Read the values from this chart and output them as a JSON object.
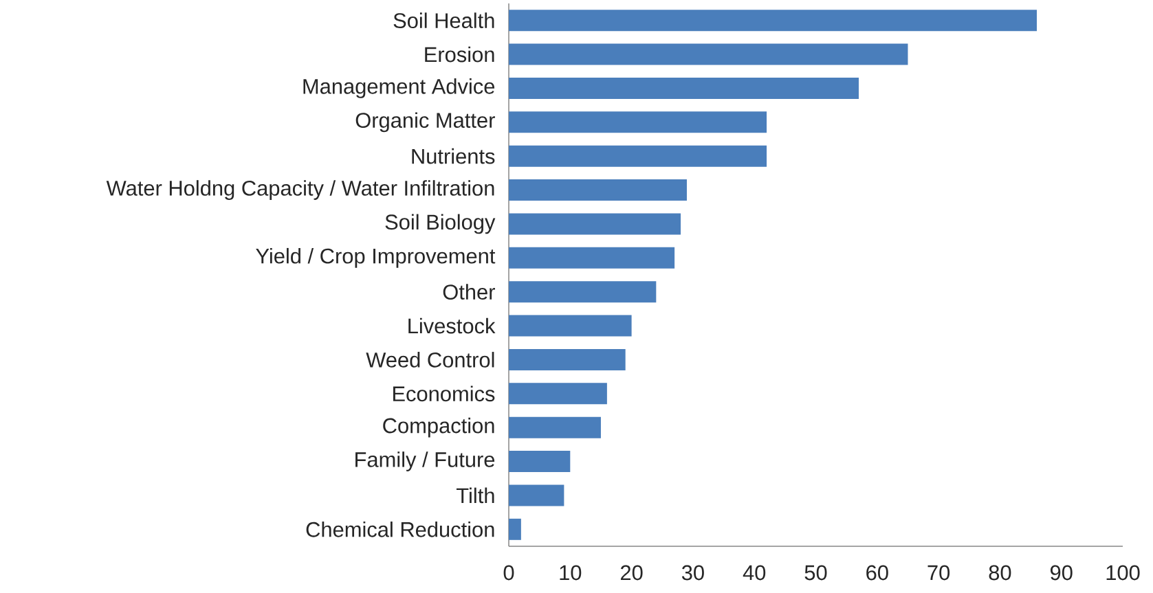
{
  "chart_data": {
    "type": "bar",
    "orientation": "horizontal",
    "categories": [
      "Soil Health",
      "Erosion",
      "Management Advice",
      "Organic Matter",
      "Nutrients",
      "Water Holdng Capacity / Water Infiltration",
      "Soil Biology",
      "Yield / Crop Improvement",
      "Other",
      "Livestock",
      "Weed Control",
      "Economics",
      "Compaction",
      "Family / Future",
      "Tilth",
      "Chemical Reduction"
    ],
    "values": [
      86,
      65,
      57,
      42,
      42,
      29,
      28,
      27,
      24,
      20,
      19,
      16,
      15,
      10,
      9,
      2
    ],
    "color": "#4a7ebb",
    "xlim": [
      0,
      100
    ],
    "xticks": [
      0,
      10,
      20,
      30,
      40,
      50,
      60,
      70,
      80,
      90,
      100
    ],
    "grid": false
  }
}
